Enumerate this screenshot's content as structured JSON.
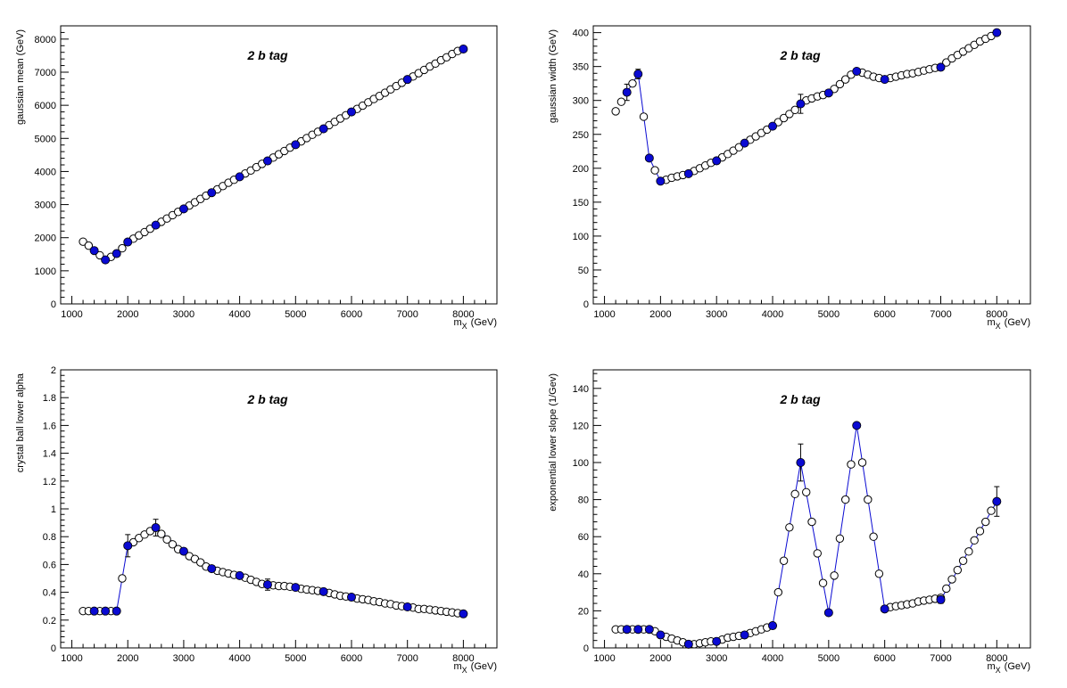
{
  "colors": {
    "fit": "#0a0ad2",
    "frame": "#000000",
    "background": "#ffffff",
    "open_marker": "#000000"
  },
  "chart_data": [
    {
      "type": "scatter",
      "title": "",
      "annotation": "2 b tag",
      "xlabel": "m",
      "xlabel_sub": "X",
      "xlabel_unit": "(GeV)",
      "ylabel": "gaussian mean (GeV)",
      "xlim": [
        800,
        8600
      ],
      "ylim": [
        0,
        8400
      ],
      "xticks": [
        1000,
        2000,
        3000,
        4000,
        5000,
        6000,
        7000,
        8000
      ],
      "yticks": [
        0,
        1000,
        2000,
        3000,
        4000,
        5000,
        6000,
        7000,
        8000
      ],
      "ytick_labels": [
        "0",
        "1000",
        "2000",
        "3000",
        "4000",
        "5000",
        "6000",
        "7000",
        "8000"
      ],
      "grid": false,
      "series": [
        {
          "kind": "open-markers",
          "x": [
            1200,
            1300,
            1400,
            1500,
            1600,
            1700,
            1800,
            1900,
            2000,
            2100,
            2200,
            2300,
            2400,
            2500,
            2600,
            2700,
            2800,
            2900,
            3000,
            3100,
            3200,
            3300,
            3400,
            3500,
            3600,
            3700,
            3800,
            3900,
            4000,
            4100,
            4200,
            4300,
            4400,
            4500,
            4600,
            4700,
            4800,
            4900,
            5000,
            5100,
            5200,
            5300,
            5400,
            5500,
            5600,
            5700,
            5800,
            5900,
            6000,
            6100,
            6200,
            6300,
            6400,
            6500,
            6600,
            6700,
            6800,
            6900,
            7000,
            7100,
            7200,
            7300,
            7400,
            7500,
            7600,
            7700,
            7800,
            7900,
            8000
          ],
          "y": [
            1880,
            1760,
            1610,
            1470,
            1330,
            1420,
            1520,
            1680,
            1870,
            1970,
            2070,
            2170,
            2270,
            2380,
            2480,
            2580,
            2680,
            2780,
            2870,
            2970,
            3070,
            3170,
            3270,
            3360,
            3460,
            3560,
            3660,
            3750,
            3840,
            3940,
            4030,
            4130,
            4230,
            4320,
            4420,
            4520,
            4620,
            4720,
            4810,
            4910,
            5010,
            5110,
            5200,
            5290,
            5400,
            5500,
            5600,
            5700,
            5800,
            5890,
            5990,
            6090,
            6190,
            6280,
            6380,
            6480,
            6580,
            6680,
            6780,
            6870,
            6970,
            7070,
            7170,
            7260,
            7360,
            7450,
            7550,
            7640,
            7700
          ]
        },
        {
          "kind": "fit-points",
          "x": [
            1400,
            1600,
            1800,
            2000,
            2500,
            3000,
            3500,
            4000,
            4500,
            5000,
            5500,
            6000,
            7000,
            8000
          ],
          "y": [
            1610,
            1330,
            1520,
            1870,
            2380,
            2870,
            3360,
            3840,
            4320,
            4810,
            5290,
            5800,
            6780,
            7700
          ],
          "err": [
            0,
            0,
            0,
            0,
            0,
            0,
            0,
            0,
            0,
            0,
            0,
            0,
            0,
            0
          ]
        }
      ]
    },
    {
      "type": "scatter",
      "title": "",
      "annotation": "2 b tag",
      "xlabel": "m",
      "xlabel_sub": "X",
      "xlabel_unit": "(GeV)",
      "ylabel": "gaussian width (GeV)",
      "xlim": [
        800,
        8600
      ],
      "ylim": [
        0,
        410
      ],
      "xticks": [
        1000,
        2000,
        3000,
        4000,
        5000,
        6000,
        7000,
        8000
      ],
      "yticks": [
        0,
        50,
        100,
        150,
        200,
        250,
        300,
        350,
        400
      ],
      "ytick_labels": [
        "0",
        "50",
        "100",
        "150",
        "200",
        "250",
        "300",
        "350",
        "400"
      ],
      "grid": false,
      "series": [
        {
          "kind": "open-markers",
          "x": [
            1200,
            1300,
            1400,
            1500,
            1600,
            1700,
            1800,
            1900,
            2000,
            2100,
            2200,
            2300,
            2400,
            2500,
            2600,
            2700,
            2800,
            2900,
            3000,
            3100,
            3200,
            3300,
            3400,
            3500,
            3600,
            3700,
            3800,
            3900,
            4000,
            4100,
            4200,
            4300,
            4400,
            4500,
            4600,
            4700,
            4800,
            4900,
            5000,
            5100,
            5200,
            5300,
            5400,
            5500,
            5600,
            5700,
            5800,
            5900,
            6000,
            6100,
            6200,
            6300,
            6400,
            6500,
            6600,
            6700,
            6800,
            6900,
            7000,
            7100,
            7200,
            7300,
            7400,
            7500,
            7600,
            7700,
            7800,
            7900,
            8000
          ],
          "y": [
            284,
            298,
            312,
            325,
            339,
            276,
            215,
            197,
            181,
            183,
            186,
            188,
            190,
            192,
            196,
            200,
            204,
            208,
            211,
            216,
            221,
            226,
            231,
            237,
            242,
            247,
            252,
            257,
            262,
            268,
            274,
            280,
            286,
            295,
            300,
            303,
            306,
            308,
            311,
            317,
            324,
            331,
            338,
            343,
            341,
            338,
            335,
            333,
            331,
            333,
            335,
            337,
            339,
            340,
            342,
            344,
            346,
            348,
            349,
            356,
            362,
            367,
            372,
            377,
            382,
            387,
            391,
            395,
            400
          ]
        },
        {
          "kind": "fit-points",
          "x": [
            1400,
            1600,
            1800,
            2000,
            2500,
            3000,
            3500,
            4000,
            4500,
            5000,
            5500,
            6000,
            7000,
            8000
          ],
          "y": [
            312,
            339,
            215,
            181,
            192,
            211,
            237,
            262,
            295,
            311,
            343,
            331,
            349,
            400
          ],
          "err": [
            12,
            7,
            0,
            0,
            0,
            0,
            0,
            0,
            14,
            0,
            0,
            0,
            0,
            0
          ]
        }
      ]
    },
    {
      "type": "scatter",
      "title": "",
      "annotation": "2 b tag",
      "xlabel": "m",
      "xlabel_sub": "X",
      "xlabel_unit": "(GeV)",
      "ylabel": "crystal ball lower alpha",
      "xlim": [
        800,
        8600
      ],
      "ylim": [
        0,
        2
      ],
      "xticks": [
        1000,
        2000,
        3000,
        4000,
        5000,
        6000,
        7000,
        8000
      ],
      "yticks": [
        0,
        0.2,
        0.4,
        0.6,
        0.8,
        1,
        1.2,
        1.4,
        1.6,
        1.8,
        2
      ],
      "ytick_labels": [
        "0",
        "0.2",
        "0.4",
        "0.6",
        "0.8",
        "1",
        "1.2",
        "1.4",
        "1.6",
        "1.8",
        "2"
      ],
      "grid": false,
      "series": [
        {
          "kind": "open-markers",
          "x": [
            1200,
            1300,
            1400,
            1500,
            1600,
            1700,
            1800,
            1900,
            2000,
            2100,
            2200,
            2300,
            2400,
            2500,
            2600,
            2700,
            2800,
            2900,
            3000,
            3100,
            3200,
            3300,
            3400,
            3500,
            3600,
            3700,
            3800,
            3900,
            4000,
            4100,
            4200,
            4300,
            4400,
            4500,
            4600,
            4700,
            4800,
            4900,
            5000,
            5100,
            5200,
            5300,
            5400,
            5500,
            5600,
            5700,
            5800,
            5900,
            6000,
            6100,
            6200,
            6300,
            6400,
            6500,
            6600,
            6700,
            6800,
            6900,
            7000,
            7100,
            7200,
            7300,
            7400,
            7500,
            7600,
            7700,
            7800,
            7900,
            8000
          ],
          "y": [
            0.265,
            0.265,
            0.265,
            0.265,
            0.265,
            0.265,
            0.265,
            0.5,
            0.735,
            0.76,
            0.79,
            0.815,
            0.84,
            0.865,
            0.82,
            0.78,
            0.745,
            0.71,
            0.695,
            0.66,
            0.64,
            0.615,
            0.585,
            0.57,
            0.555,
            0.545,
            0.535,
            0.525,
            0.52,
            0.505,
            0.49,
            0.475,
            0.46,
            0.455,
            0.45,
            0.445,
            0.445,
            0.44,
            0.435,
            0.425,
            0.42,
            0.415,
            0.41,
            0.405,
            0.395,
            0.385,
            0.375,
            0.37,
            0.365,
            0.355,
            0.35,
            0.345,
            0.335,
            0.33,
            0.32,
            0.315,
            0.305,
            0.3,
            0.295,
            0.29,
            0.28,
            0.28,
            0.275,
            0.27,
            0.265,
            0.26,
            0.255,
            0.25,
            0.245
          ]
        },
        {
          "kind": "fit-points",
          "x": [
            1400,
            1600,
            1800,
            2000,
            2500,
            3000,
            3500,
            4000,
            4500,
            5000,
            5500,
            6000,
            7000,
            8000
          ],
          "y": [
            0.265,
            0.265,
            0.265,
            0.735,
            0.865,
            0.695,
            0.57,
            0.52,
            0.455,
            0.435,
            0.405,
            0.365,
            0.295,
            0.245
          ],
          "err": [
            0,
            0,
            0,
            0.08,
            0.06,
            0,
            0,
            0,
            0.04,
            0,
            0,
            0,
            0,
            0
          ]
        }
      ]
    },
    {
      "type": "scatter",
      "title": "",
      "annotation": "2 b tag",
      "xlabel": "m",
      "xlabel_sub": "X",
      "xlabel_unit": "(GeV)",
      "ylabel": "exponential lower slope (1/Gev)",
      "xlim": [
        800,
        8600
      ],
      "ylim": [
        0,
        150
      ],
      "xticks": [
        1000,
        2000,
        3000,
        4000,
        5000,
        6000,
        7000,
        8000
      ],
      "yticks": [
        0,
        20,
        40,
        60,
        80,
        100,
        120,
        140
      ],
      "ytick_labels": [
        "0",
        "20",
        "40",
        "60",
        "80",
        "100",
        "120",
        "140"
      ],
      "grid": false,
      "series": [
        {
          "kind": "open-markers",
          "x": [
            1200,
            1300,
            1400,
            1500,
            1600,
            1700,
            1800,
            1900,
            2000,
            2100,
            2200,
            2300,
            2400,
            2500,
            2600,
            2700,
            2800,
            2900,
            3000,
            3100,
            3200,
            3300,
            3400,
            3500,
            3600,
            3700,
            3800,
            3900,
            4000,
            4100,
            4200,
            4300,
            4400,
            4500,
            4600,
            4700,
            4800,
            4900,
            5000,
            5100,
            5200,
            5300,
            5400,
            5500,
            5600,
            5700,
            5800,
            5900,
            6000,
            6100,
            6200,
            6300,
            6400,
            6500,
            6600,
            6700,
            6800,
            6900,
            7000,
            7100,
            7200,
            7300,
            7400,
            7500,
            7600,
            7700,
            7800,
            7900,
            8000
          ],
          "y": [
            10,
            10,
            10,
            10,
            10,
            10,
            10,
            9,
            7,
            6,
            5,
            4,
            3,
            2,
            2,
            2.5,
            3,
            3.5,
            3.5,
            4.5,
            5.5,
            6,
            6.5,
            7,
            8,
            9,
            10,
            11,
            12,
            30,
            47,
            65,
            83,
            100,
            84,
            68,
            51,
            35,
            19,
            39,
            59,
            80,
            99,
            120,
            100,
            80,
            60,
            40,
            21,
            22,
            22.5,
            23,
            23.5,
            24,
            25,
            25.5,
            26,
            26.5,
            27,
            32,
            37,
            42,
            47,
            52,
            58,
            63,
            68,
            74,
            79
          ]
        },
        {
          "kind": "fit-points",
          "x": [
            1400,
            1600,
            1800,
            2000,
            2500,
            3000,
            3500,
            4000,
            4500,
            5000,
            5500,
            6000,
            7000,
            8000
          ],
          "y": [
            10,
            10,
            10,
            7,
            2,
            3.5,
            7,
            12,
            100,
            19,
            120,
            21,
            26,
            79
          ],
          "err": [
            0,
            0,
            0,
            0,
            0,
            0,
            0,
            0,
            10,
            0,
            0,
            0,
            2,
            8
          ]
        }
      ]
    }
  ]
}
